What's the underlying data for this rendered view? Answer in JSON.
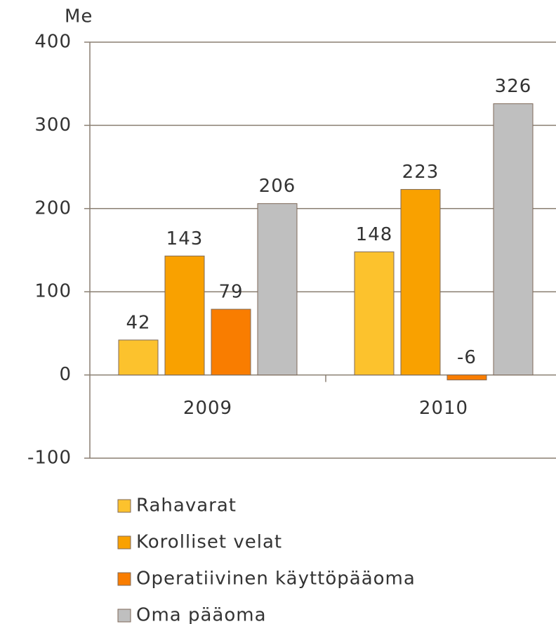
{
  "chart_data": {
    "type": "bar",
    "y_axis_label": "Me",
    "categories": [
      "2009",
      "2010"
    ],
    "series": [
      {
        "name": "Rahavarat",
        "color": "#fcc22d",
        "values": [
          42,
          148
        ]
      },
      {
        "name": "Korolliset velat",
        "color": "#f9a100",
        "values": [
          143,
          223
        ]
      },
      {
        "name": "Operatiivinen käyttöpääoma",
        "color": "#f97d00",
        "values": [
          79,
          -6
        ]
      },
      {
        "name": "Oma pääoma",
        "color": "#bfbfbf",
        "values": [
          206,
          326
        ]
      }
    ],
    "ylim": [
      -100,
      400
    ],
    "yticks": [
      -100,
      0,
      100,
      200,
      300,
      400
    ],
    "grid": true,
    "legend": "bottom"
  }
}
